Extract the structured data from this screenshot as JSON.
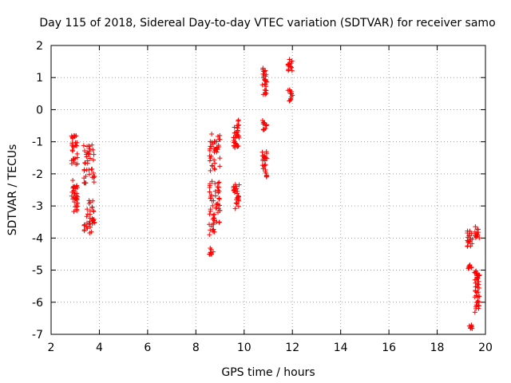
{
  "chart_data": {
    "type": "scatter",
    "title": "Day 115 of 2018, Sidereal Day-to-day VTEC variation (SDTVAR) for receiver samo",
    "xlabel": "GPS time / hours",
    "ylabel": "SDTVAR / TECUs",
    "xlim": [
      2,
      20
    ],
    "ylim": [
      -7,
      2
    ],
    "xticks": [
      2,
      4,
      6,
      8,
      10,
      12,
      14,
      16,
      18,
      20
    ],
    "yticks": [
      -7,
      -6,
      -5,
      -4,
      -3,
      -2,
      -1,
      0,
      1,
      2
    ],
    "grid": true,
    "marker": "plus",
    "color": "#ff0000",
    "clusters": [
      {
        "x": [
          2.85,
          3.1
        ],
        "y": [
          -1.7,
          -0.8
        ]
      },
      {
        "x": [
          2.85,
          3.1
        ],
        "y": [
          -3.2,
          -2.2
        ]
      },
      {
        "x": [
          3.35,
          3.8
        ],
        "y": [
          -2.3,
          -1.1
        ]
      },
      {
        "x": [
          3.35,
          3.8
        ],
        "y": [
          -3.85,
          -2.8
        ]
      },
      {
        "x": [
          8.55,
          9.0
        ],
        "y": [
          -1.9,
          -0.75
        ]
      },
      {
        "x": [
          8.55,
          9.0
        ],
        "y": [
          -3.9,
          -2.2
        ]
      },
      {
        "x": [
          8.55,
          8.75
        ],
        "y": [
          -4.55,
          -4.3
        ]
      },
      {
        "x": [
          9.55,
          9.8
        ],
        "y": [
          -1.2,
          -0.2
        ]
      },
      {
        "x": [
          9.55,
          9.8
        ],
        "y": [
          -3.1,
          -2.3
        ]
      },
      {
        "x": [
          10.75,
          10.95
        ],
        "y": [
          0.45,
          1.3
        ]
      },
      {
        "x": [
          10.75,
          10.95
        ],
        "y": [
          -0.65,
          -0.3
        ]
      },
      {
        "x": [
          10.75,
          10.95
        ],
        "y": [
          -2.1,
          -1.3
        ]
      },
      {
        "x": [
          11.8,
          12.0
        ],
        "y": [
          1.2,
          1.6
        ]
      },
      {
        "x": [
          11.8,
          12.0
        ],
        "y": [
          0.25,
          0.65
        ]
      },
      {
        "x": [
          19.25,
          19.45
        ],
        "y": [
          -4.3,
          -3.75
        ]
      },
      {
        "x": [
          19.25,
          19.45
        ],
        "y": [
          -5.0,
          -4.8
        ]
      },
      {
        "x": [
          19.25,
          19.45
        ],
        "y": [
          -6.85,
          -6.7
        ]
      },
      {
        "x": [
          19.55,
          19.75
        ],
        "y": [
          -4.0,
          -3.6
        ]
      },
      {
        "x": [
          19.55,
          19.75
        ],
        "y": [
          -6.35,
          -5.0
        ]
      }
    ]
  }
}
